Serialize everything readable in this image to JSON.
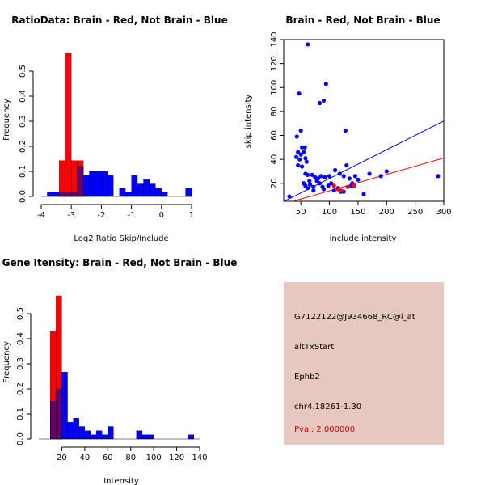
{
  "colors": {
    "red": "#ff0000",
    "blue": "#0000ff",
    "overlap": "#660066",
    "info_bg": "#e6c8c0",
    "pval": "#cc0000"
  },
  "info": {
    "probe": "G7122122@J934668_RC@i_at",
    "event": "altTxStart",
    "gene": "Ephb2",
    "location": "chr4.18261-1.30",
    "pval": "Pval: 2.000000"
  },
  "chart_data": [
    {
      "type": "bar",
      "title": "RatioData: Brain - Red, Not Brain - Blue",
      "xlabel": "Log2 Ratio Skip/Include",
      "ylabel": "Frequency",
      "xlim": [
        -4,
        1
      ],
      "ylim": [
        0,
        0.6
      ],
      "xticks": [
        "-4",
        "-3",
        "-2",
        "-1",
        "0",
        "1"
      ],
      "yticks": [
        "0.0",
        "0.1",
        "0.2",
        "0.3",
        "0.4",
        "0.5"
      ],
      "bin_width": 0.2,
      "series": [
        {
          "name": "Not Brain",
          "color": "blue",
          "bins": [
            [
              -3.8,
              0.017
            ],
            [
              -3.6,
              0.017
            ],
            [
              -3.4,
              0.017
            ],
            [
              -3.2,
              0.017
            ],
            [
              -3.0,
              0.017
            ],
            [
              -2.8,
              0.12
            ],
            [
              -2.6,
              0.085
            ],
            [
              -2.4,
              0.1
            ],
            [
              -2.2,
              0.1
            ],
            [
              -2.0,
              0.1
            ],
            [
              -1.8,
              0.085
            ],
            [
              -1.6,
              0.0
            ],
            [
              -1.4,
              0.033
            ],
            [
              -1.2,
              0.017
            ],
            [
              -1.0,
              0.085
            ],
            [
              -0.8,
              0.05
            ],
            [
              -0.6,
              0.067
            ],
            [
              -0.4,
              0.05
            ],
            [
              -0.2,
              0.033
            ],
            [
              0.0,
              0.017
            ],
            [
              0.2,
              0.0
            ],
            [
              0.4,
              0.0
            ],
            [
              0.6,
              0.0
            ],
            [
              0.8,
              0.033
            ]
          ]
        },
        {
          "name": "Brain",
          "color": "red",
          "bins": [
            [
              -3.4,
              0.143
            ],
            [
              -3.2,
              0.571
            ],
            [
              -3.0,
              0.143
            ],
            [
              -2.8,
              0.143
            ]
          ]
        }
      ]
    },
    {
      "type": "scatter",
      "title": "Brain - Red, Not Brain - Blue",
      "xlabel": "include intensity",
      "ylabel": "skip intensity",
      "xlim": [
        20,
        300
      ],
      "ylim": [
        5,
        140
      ],
      "xticks": [
        50,
        100,
        150,
        200,
        250,
        300
      ],
      "yticks": [
        20,
        40,
        60,
        80,
        100,
        120,
        140
      ],
      "series": [
        {
          "name": "Not Brain",
          "color": "blue",
          "points": [
            [
              62,
              136
            ],
            [
              94,
              103
            ],
            [
              47,
              95
            ],
            [
              90,
              89
            ],
            [
              83,
              87
            ],
            [
              128,
              64
            ],
            [
              50,
              64
            ],
            [
              43,
              59
            ],
            [
              52,
              50
            ],
            [
              57,
              50
            ],
            [
              45,
              46
            ],
            [
              50,
              44
            ],
            [
              55,
              46
            ],
            [
              58,
              41
            ],
            [
              42,
              42
            ],
            [
              48,
              40
            ],
            [
              60,
              38
            ],
            [
              45,
              35
            ],
            [
              52,
              34
            ],
            [
              58,
              28
            ],
            [
              62,
              27
            ],
            [
              70,
              27
            ],
            [
              75,
              25
            ],
            [
              80,
              24
            ],
            [
              85,
              26
            ],
            [
              92,
              25
            ],
            [
              100,
              26
            ],
            [
              110,
              31
            ],
            [
              118,
              28
            ],
            [
              125,
              26
            ],
            [
              135,
              24
            ],
            [
              145,
              26
            ],
            [
              150,
              23
            ],
            [
              170,
              28
            ],
            [
              190,
              26
            ],
            [
              200,
              30
            ],
            [
              290,
              26
            ],
            [
              55,
              20
            ],
            [
              58,
              18
            ],
            [
              62,
              16
            ],
            [
              66,
              19
            ],
            [
              72,
              14
            ],
            [
              78,
              22
            ],
            [
              83,
              20
            ],
            [
              88,
              17
            ],
            [
              98,
              18
            ],
            [
              108,
              14
            ],
            [
              115,
              16
            ],
            [
              120,
              13
            ],
            [
              140,
              20
            ],
            [
              160,
              11
            ],
            [
              30,
              9
            ],
            [
              65,
              22
            ],
            [
              72,
              17
            ],
            [
              90,
              15
            ],
            [
              103,
              20
            ],
            [
              125,
              13
            ],
            [
              138,
              18
            ],
            [
              130,
              35
            ]
          ]
        },
        {
          "name": "Brain",
          "color": "red",
          "points": [
            [
              108,
              18
            ],
            [
              115,
              15
            ],
            [
              120,
              14
            ],
            [
              132,
              17
            ],
            [
              143,
              18
            ]
          ]
        }
      ],
      "lines": [
        {
          "color": "blue",
          "intercept": 0,
          "slope": 0.24
        },
        {
          "color": "red",
          "intercept": 0,
          "slope": 0.137
        }
      ]
    },
    {
      "type": "bar",
      "title": "Gene Itensity: Brain - Red, Not Brain - Blue",
      "xlabel": "Intensity",
      "ylabel": "Frequency",
      "xlim": [
        0,
        140
      ],
      "ylim": [
        0,
        0.6
      ],
      "xticks": [
        "20",
        "40",
        "60",
        "80",
        "100",
        "120",
        "140"
      ],
      "yticks": [
        "0.0",
        "0.1",
        "0.2",
        "0.3",
        "0.4",
        "0.5"
      ],
      "bin_width": 5,
      "series": [
        {
          "name": "Not Brain",
          "color": "blue",
          "bins": [
            [
              10,
              0.15
            ],
            [
              15,
              0.2
            ],
            [
              20,
              0.267
            ],
            [
              25,
              0.067
            ],
            [
              30,
              0.083
            ],
            [
              35,
              0.05
            ],
            [
              40,
              0.033
            ],
            [
              45,
              0.017
            ],
            [
              50,
              0.033
            ],
            [
              55,
              0.017
            ],
            [
              60,
              0.05
            ],
            [
              85,
              0.033
            ],
            [
              90,
              0.017
            ],
            [
              95,
              0.017
            ],
            [
              130,
              0.017
            ]
          ]
        },
        {
          "name": "Brain",
          "color": "red",
          "bins": [
            [
              10,
              0.429
            ],
            [
              15,
              0.571
            ]
          ]
        }
      ]
    }
  ]
}
